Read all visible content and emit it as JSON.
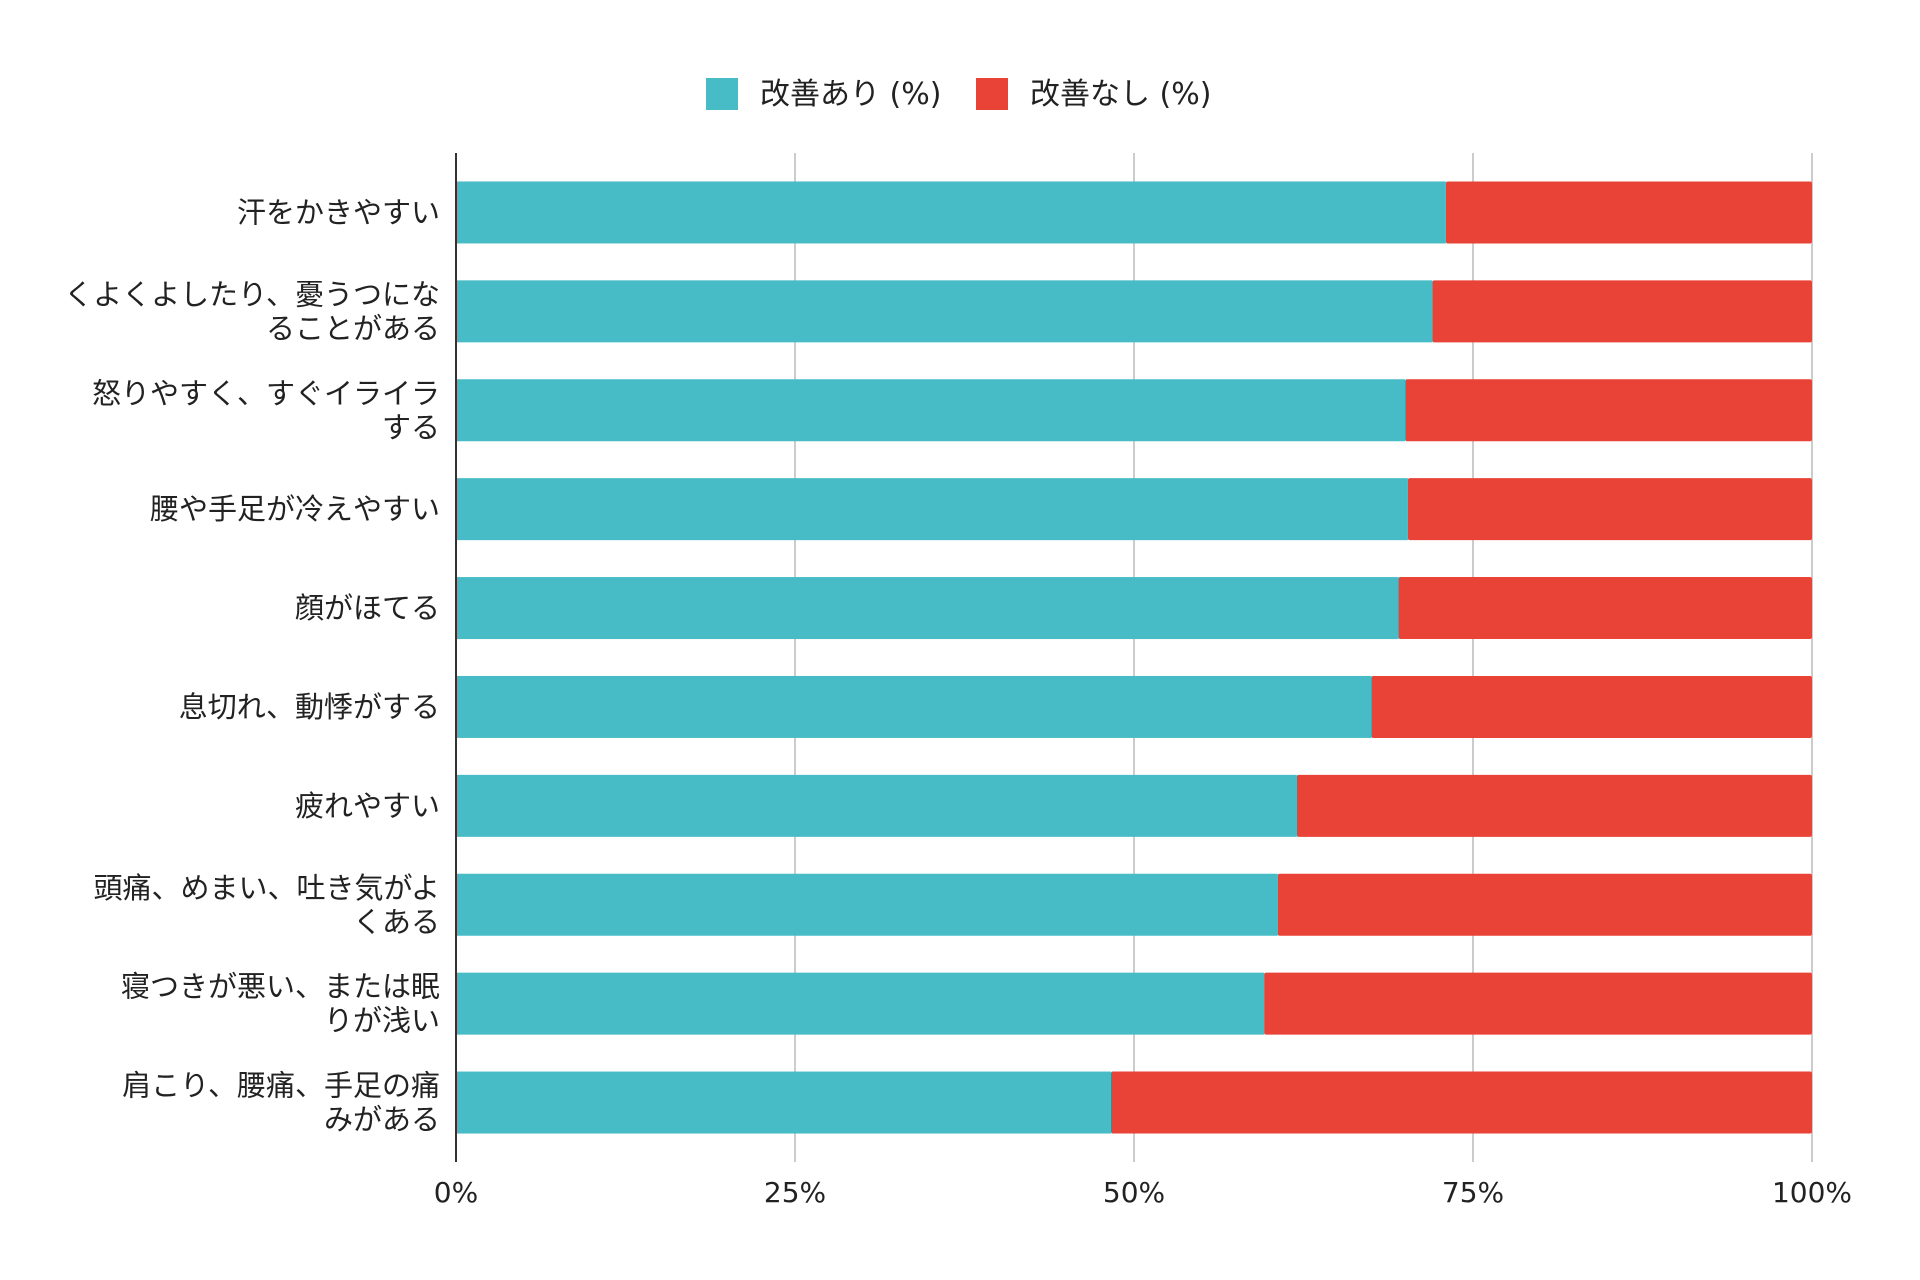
{
  "chart_data": {
    "type": "bar",
    "stacked": true,
    "orientation": "horizontal",
    "title": "",
    "xlabel": "",
    "ylabel": "",
    "xlim": [
      0,
      100
    ],
    "x_ticks": [
      "0%",
      "25%",
      "50%",
      "75%",
      "100%"
    ],
    "grid": true,
    "legend_position": "top-center",
    "categories": [
      [
        "汗をかきやすい"
      ],
      [
        "くよくよしたり、憂うつにな",
        "ることがある"
      ],
      [
        "怒りやすく、すぐイライラ",
        "する"
      ],
      [
        "腰や手足が冷えやすい"
      ],
      [
        "顔がほてる"
      ],
      [
        "息切れ、動悸がする"
      ],
      [
        "疲れやすい"
      ],
      [
        "頭痛、めまい、吐き気がよ",
        "くある"
      ],
      [
        "寝つきが悪い、または眠",
        "りが浅い"
      ],
      [
        "肩こり、腰痛、手足の痛",
        "みがある"
      ]
    ],
    "series": [
      {
        "name": "改善あり (%)",
        "color": "#47bcc6",
        "values": [
          73,
          72,
          70,
          70.2,
          69.5,
          67.5,
          62,
          60.6,
          59.6,
          48.3
        ]
      },
      {
        "name": "改善なし (%)",
        "color": "#e94236",
        "values": [
          27,
          28,
          30,
          29.8,
          30.5,
          32.5,
          38,
          39.4,
          40.4,
          51.7
        ]
      }
    ]
  }
}
